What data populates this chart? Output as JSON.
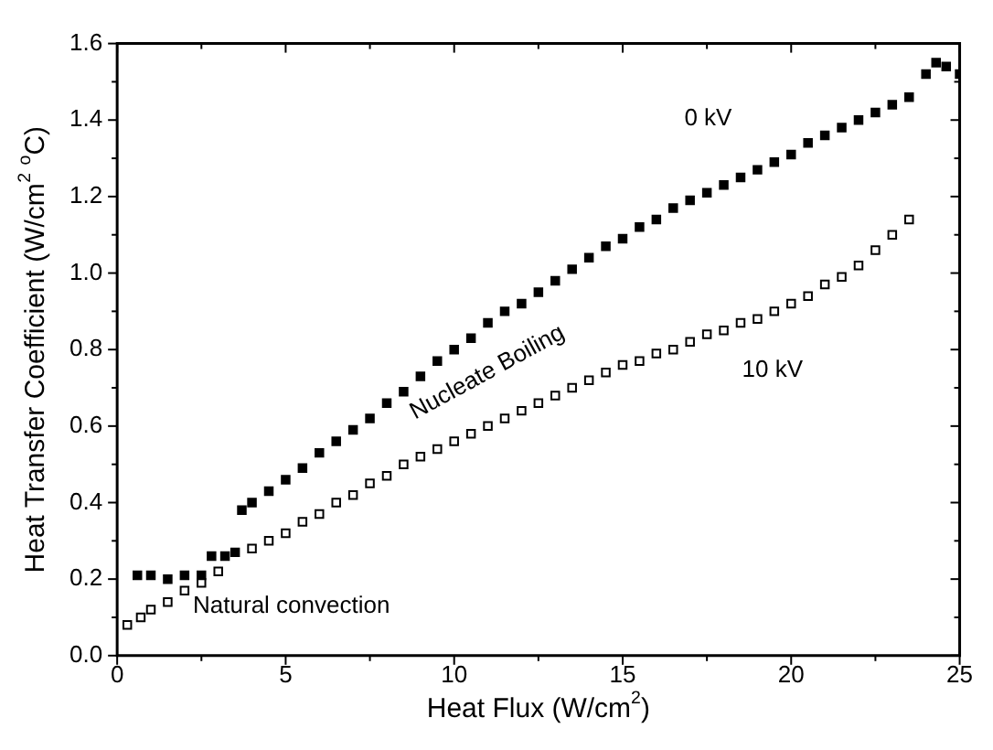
{
  "chart_data": {
    "type": "scatter",
    "xlabel": "Heat Flux (W/cm$^{2}$)",
    "ylabel": "Heat Transfer Coefficient (W/cm$^{2}$ $^{o}$C)",
    "xlim": [
      0,
      25
    ],
    "xticks": [
      0,
      5,
      10,
      15,
      20,
      25
    ],
    "ylim": [
      0,
      1.6
    ],
    "yticks": [
      {
        "value": 0,
        "label": "0.0"
      },
      0.2,
      0.4,
      0.6,
      0.8,
      {
        "value": 1,
        "label": "1.0"
      },
      1.2,
      1.4,
      1.6
    ],
    "grid": false,
    "legend": false,
    "marker": "square",
    "annotations": [
      "Nucleate Boiling",
      "Natural convection"
    ],
    "series": [
      {
        "name": "0 kV",
        "color": "#000000",
        "x": [
          0.6,
          1.0,
          1.5,
          2.0,
          2.5,
          2.8,
          3.2,
          3.5,
          3.7,
          4.0,
          4.5,
          5,
          5.5,
          6,
          6.5,
          7,
          7.5,
          8,
          8.5,
          9,
          9.5,
          10,
          10.5,
          11,
          11.5,
          12,
          12.5,
          13,
          13.5,
          14,
          14.5,
          15,
          15.5,
          16,
          16.5,
          17,
          17.5,
          18,
          18.5,
          19,
          19.5,
          20,
          20.5,
          21,
          21.5,
          22,
          22.5,
          23,
          23.5,
          24,
          24.3,
          24.6,
          25
        ],
        "values": [
          0.21,
          0.21,
          0.2,
          0.21,
          0.21,
          0.26,
          0.26,
          0.27,
          0.38,
          0.4,
          0.43,
          0.46,
          0.49,
          0.53,
          0.56,
          0.59,
          0.62,
          0.66,
          0.69,
          0.73,
          0.77,
          0.8,
          0.83,
          0.87,
          0.9,
          0.92,
          0.95,
          0.98,
          1.01,
          1.04,
          1.07,
          1.09,
          1.12,
          1.14,
          1.17,
          1.19,
          1.21,
          1.23,
          1.25,
          1.27,
          1.29,
          1.31,
          1.34,
          1.36,
          1.38,
          1.4,
          1.42,
          1.44,
          1.46,
          1.52,
          1.55,
          1.54,
          1.52
        ]
      },
      {
        "name": "10 kV",
        "color": "#ffffff",
        "x": [
          0.3,
          0.7,
          1.0,
          1.5,
          2.0,
          2.5,
          3.0,
          3.5,
          4,
          4.5,
          5,
          5.5,
          6,
          6.5,
          7,
          7.5,
          8,
          8.5,
          9,
          9.5,
          10,
          10.5,
          11,
          11.5,
          12,
          12.5,
          13,
          13.5,
          14,
          14.5,
          15,
          15.5,
          16,
          16.5,
          17,
          17.5,
          18,
          18.5,
          19,
          19.5,
          20,
          20.5,
          21,
          21.5,
          22,
          22.5,
          23,
          23.5
        ],
        "values": [
          0.08,
          0.1,
          0.12,
          0.14,
          0.17,
          0.19,
          0.22,
          null,
          0.28,
          0.3,
          0.32,
          0.35,
          0.37,
          0.4,
          0.42,
          0.45,
          0.47,
          0.5,
          0.52,
          0.54,
          0.56,
          0.58,
          0.6,
          0.62,
          0.64,
          0.66,
          0.68,
          0.7,
          0.72,
          0.74,
          0.76,
          0.77,
          0.79,
          0.8,
          0.82,
          0.84,
          0.85,
          0.87,
          0.88,
          0.9,
          0.92,
          0.94,
          0.97,
          0.99,
          1.02,
          1.06,
          1.1,
          1.14
        ]
      }
    ]
  }
}
